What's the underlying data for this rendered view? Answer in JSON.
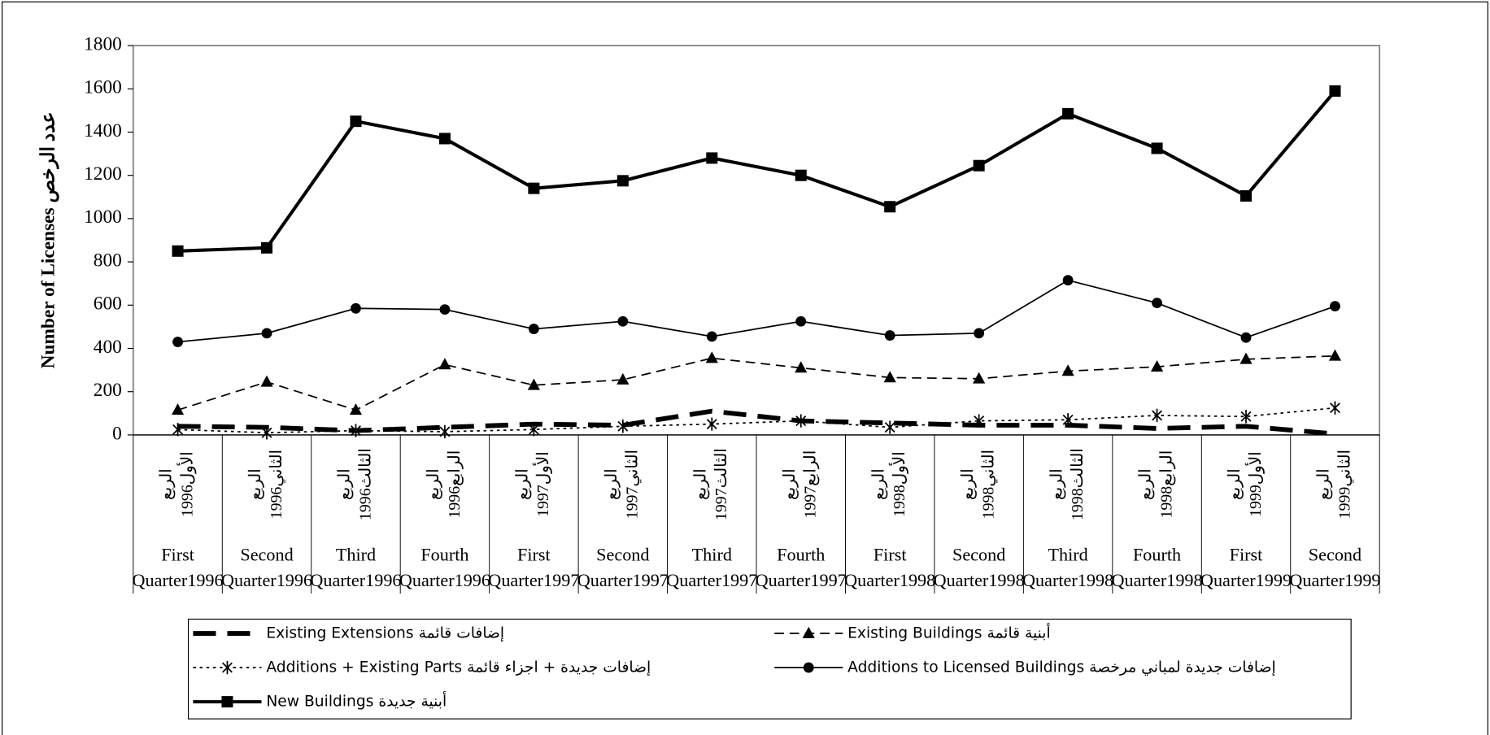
{
  "chart_data": {
    "type": "line",
    "y_label": "Number of Licenses  عدد الرخص",
    "categories": [
      "First Quarter1996",
      "Second Quarter1996",
      "Third Quarter1996",
      "Fourth Quarter1996",
      "First Quarter1997",
      "Second Quarter1997",
      "Third Quarter1997",
      "Fourth Quarter1997",
      "First Quarter1998",
      "Second Quarter1998",
      "Third Quarter1998",
      "Fourth Quarter1998",
      "First Quarter1999",
      "Second Quarter1999"
    ],
    "arabic_categories": [
      "الربع الأول1996",
      "الربع الثاني1996",
      "الربع الثالث1996",
      "الربع الرابع1996",
      "الربع الأول1997",
      "الربع الثاني1997",
      "الربع الثالث1997",
      "الربع الرابع1997",
      "الربع الأول1998",
      "الربع الثاني1998",
      "الربع الثالث1998",
      "الربع الرابع1998",
      "الربع الأول1999",
      "الربع الثاني1999"
    ],
    "ylim": [
      0,
      1800
    ],
    "yticks": [
      0,
      200,
      400,
      600,
      800,
      1000,
      1200,
      1400,
      1600,
      1800
    ],
    "series": [
      {
        "name": "Existing Extensions إضافات قائمة",
        "color": "#000000",
        "dash": "long-dash",
        "marker": "none",
        "values": [
          40,
          35,
          20,
          35,
          50,
          45,
          110,
          65,
          55,
          45,
          45,
          30,
          40,
          5
        ]
      },
      {
        "name": "Existing Buildings أبنية قائمة",
        "color": "#000000",
        "dash": "dash",
        "marker": "triangle",
        "values": [
          115,
          245,
          115,
          325,
          230,
          255,
          355,
          310,
          265,
          260,
          295,
          315,
          350,
          365
        ]
      },
      {
        "name": "Additions + Existing  Parts إضافات جديدة + اجزاء قائمة",
        "color": "#000000",
        "dash": "dot",
        "marker": "asterisk",
        "values": [
          25,
          10,
          20,
          15,
          25,
          40,
          50,
          65,
          35,
          65,
          70,
          90,
          85,
          125
        ]
      },
      {
        "name": "Additions to Licensed Buildings إضافات جديدة لمباني مرخصة",
        "color": "#000000",
        "dash": "solid-thin",
        "marker": "circle",
        "values": [
          430,
          470,
          585,
          580,
          490,
          525,
          455,
          525,
          460,
          470,
          715,
          610,
          450,
          595
        ]
      },
      {
        "name": "New  Buildings أبنية  جديدة",
        "color": "#000000",
        "dash": "solid-thick",
        "marker": "square",
        "values": [
          850,
          865,
          1450,
          1370,
          1140,
          1175,
          1280,
          1200,
          1055,
          1245,
          1485,
          1325,
          1105,
          1590
        ]
      }
    ]
  }
}
